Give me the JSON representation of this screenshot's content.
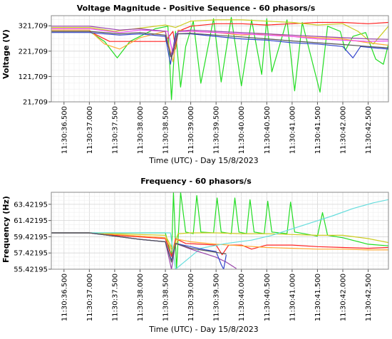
{
  "chart_data": [
    {
      "type": "line",
      "title": "Voltage Magnitude - Positive Sequence - 60 phasors/s",
      "xlabel": "Time (UTC) - Day 15/8/2023",
      "ylabel": "Voltage (V)",
      "ylim": [
        21709,
        361709
      ],
      "yticks": [
        "21,709",
        "121,709",
        "221,709",
        "321,709"
      ],
      "ytick_values": [
        21709,
        121709,
        221709,
        321709
      ],
      "xticks": [
        "11:30:36.500",
        "11:30:37.000",
        "11:30:37.500",
        "11:30:38.000",
        "11:30:38.500",
        "11:30:39.000",
        "11:30:39.500",
        "11:30:40.000",
        "11:30:40.500",
        "11:30:41.000",
        "11:30:41.500",
        "11:30:42.000",
        "11:30:42.500"
      ],
      "xlim": [
        36.25,
        42.9
      ],
      "grid": true,
      "colors": [
        "#22dd22",
        "#ff2222",
        "#ffaa33",
        "#cccc22",
        "#3344cc",
        "#ee44ee",
        "#9944aa",
        "#555555"
      ],
      "series": [
        {
          "color": "#22dd22",
          "x": [
            36.25,
            37.0,
            37.3,
            37.55,
            37.8,
            38.3,
            38.55,
            38.62,
            38.7,
            38.8,
            38.9,
            39.05,
            39.2,
            39.45,
            39.6,
            39.8,
            40.0,
            40.2,
            40.4,
            40.5,
            40.6,
            40.9,
            41.05,
            41.2,
            41.55,
            41.7,
            41.95,
            42.05,
            42.2,
            42.45,
            42.65,
            42.8,
            42.9
          ],
          "y": [
            300000,
            300000,
            260000,
            195000,
            260000,
            310000,
            320000,
            30000,
            300000,
            80000,
            240000,
            340000,
            95000,
            350000,
            100000,
            355000,
            85000,
            345000,
            130000,
            350000,
            140000,
            345000,
            65000,
            335000,
            60000,
            320000,
            300000,
            225000,
            280000,
            295000,
            190000,
            170000,
            250000
          ]
        },
        {
          "color": "#ff2222",
          "x": [
            36.25,
            37.0,
            37.4,
            37.7,
            38.5,
            38.65,
            38.7,
            38.75,
            39.0,
            39.5,
            40.0,
            40.5,
            41.0,
            41.5,
            42.0,
            42.5,
            42.9
          ],
          "y": [
            300000,
            300000,
            260000,
            260000,
            260000,
            300000,
            230000,
            300000,
            320000,
            330000,
            330000,
            325000,
            330000,
            335000,
            335000,
            330000,
            335000
          ]
        },
        {
          "color": "#ffaa33",
          "x": [
            36.25,
            37.0,
            37.3,
            37.6,
            38.0,
            38.5,
            38.65,
            38.75,
            39.0,
            39.5,
            40.0,
            40.5,
            41.0,
            41.5,
            42.0,
            42.5,
            42.9
          ],
          "y": [
            305000,
            305000,
            250000,
            230000,
            275000,
            300000,
            180000,
            305000,
            300000,
            295000,
            285000,
            290000,
            280000,
            275000,
            270000,
            255000,
            245000
          ]
        },
        {
          "color": "#cccc22",
          "x": [
            36.25,
            37.0,
            37.5,
            37.9,
            38.5,
            38.7,
            39.0,
            39.5,
            40.0,
            40.5,
            41.0,
            41.5,
            42.0,
            42.3,
            42.6,
            42.9
          ],
          "y": [
            315000,
            315000,
            300000,
            310000,
            325000,
            315000,
            340000,
            345000,
            345000,
            340000,
            335000,
            325000,
            330000,
            300000,
            250000,
            320000
          ]
        },
        {
          "color": "#3344cc",
          "x": [
            36.25,
            37.0,
            37.6,
            38.0,
            38.5,
            38.6,
            38.7,
            39.0,
            39.5,
            40.0,
            40.5,
            41.0,
            41.5,
            42.0,
            42.2,
            42.35,
            42.6,
            42.9
          ],
          "y": [
            295000,
            295000,
            285000,
            290000,
            280000,
            170000,
            290000,
            290000,
            280000,
            270000,
            265000,
            255000,
            250000,
            240000,
            195000,
            240000,
            235000,
            230000
          ]
        },
        {
          "color": "#ee44ee",
          "x": [
            36.25,
            37.0,
            37.6,
            38.0,
            38.55,
            38.65,
            38.75,
            39.0,
            39.5,
            40.0,
            40.5,
            41.0,
            41.5,
            42.0,
            42.5,
            42.9
          ],
          "y": [
            310000,
            310000,
            295000,
            305000,
            300000,
            210000,
            300000,
            300000,
            295000,
            290000,
            285000,
            280000,
            270000,
            265000,
            260000,
            262000
          ]
        },
        {
          "color": "#9944aa",
          "x": [
            36.25,
            37.0,
            37.6,
            38.0,
            38.5,
            38.6,
            38.75,
            39.0,
            39.5,
            40.0,
            40.5,
            41.0,
            41.5,
            42.0,
            42.5,
            42.9
          ],
          "y": [
            320000,
            320000,
            305000,
            310000,
            300000,
            200000,
            300000,
            305000,
            300000,
            295000,
            290000,
            285000,
            280000,
            275000,
            270000,
            268000
          ]
        },
        {
          "color": "#555555",
          "x": [
            36.25,
            37.0,
            37.6,
            38.0,
            38.5,
            38.62,
            38.75,
            39.0,
            39.5,
            40.0,
            40.5,
            41.0,
            41.5,
            42.0,
            42.5,
            42.9
          ],
          "y": [
            300000,
            300000,
            290000,
            295000,
            285000,
            195000,
            290000,
            292000,
            285000,
            278000,
            270000,
            262000,
            255000,
            248000,
            240000,
            235000
          ]
        }
      ]
    },
    {
      "type": "line",
      "title": "Frequency - 60 phasors/s",
      "xlabel": "Time (UTC) - Day 15/8/2023",
      "ylabel": "Frequency (Hz)",
      "ylim": [
        55.42195,
        64.9
      ],
      "yticks": [
        "55.42195",
        "57.42195",
        "59.42195",
        "61.42195",
        "63.42195"
      ],
      "ytick_values": [
        55.42195,
        57.42195,
        59.42195,
        61.42195,
        63.42195
      ],
      "xticks": [
        "11:30:36.500",
        "11:30:37.000",
        "11:30:37.500",
        "11:30:38.000",
        "11:30:38.500",
        "11:30:39.000",
        "11:30:39.500",
        "11:30:40.000",
        "11:30:40.500",
        "11:30:41.000",
        "11:30:41.500",
        "11:30:42.000",
        "11:30:42.500"
      ],
      "xlim": [
        36.25,
        42.9
      ],
      "grid": true,
      "colors": [
        "#22dd22",
        "#ff2222",
        "#ffaa33",
        "#cccc22",
        "#66dddd",
        "#9944aa",
        "#3344cc",
        "#555555"
      ],
      "series": [
        {
          "color": "#22dd22",
          "x": [
            36.25,
            38.5,
            38.62,
            38.66,
            38.72,
            38.8,
            38.9,
            39.05,
            39.12,
            39.2,
            39.45,
            39.52,
            39.6,
            39.8,
            39.87,
            39.95,
            40.1,
            40.17,
            40.25,
            40.45,
            40.52,
            40.6,
            40.9,
            40.97,
            41.05,
            41.5,
            41.6,
            41.7,
            42.0,
            42.5,
            42.9
          ],
          "y": [
            59.9,
            59.9,
            57.0,
            64.9,
            55.42195,
            64.9,
            60.0,
            59.8,
            64.5,
            60.0,
            59.9,
            64.2,
            60.0,
            59.8,
            64.2,
            60.0,
            59.8,
            64.0,
            60.0,
            59.8,
            63.8,
            60.0,
            59.8,
            63.7,
            60.0,
            59.5,
            62.4,
            59.6,
            59.3,
            58.5,
            58.3
          ]
        },
        {
          "color": "#ff2222",
          "x": [
            36.25,
            37.0,
            37.5,
            38.0,
            38.5,
            38.62,
            38.7,
            38.9,
            39.2,
            39.5,
            39.62,
            39.75,
            40.0,
            40.2,
            40.5,
            41.0,
            41.5,
            42.0,
            42.5,
            42.9
          ],
          "y": [
            59.9,
            59.9,
            59.6,
            59.4,
            59.2,
            57.0,
            59.2,
            58.6,
            58.5,
            58.4,
            57.2,
            58.4,
            58.4,
            57.9,
            58.4,
            58.4,
            58.2,
            58.1,
            58.0,
            58.1
          ]
        },
        {
          "color": "#ffaa33",
          "x": [
            36.25,
            37.0,
            37.5,
            38.0,
            38.5,
            38.65,
            38.75,
            39.0,
            39.5,
            40.0,
            40.5,
            41.0,
            41.5,
            42.0,
            42.5,
            42.9
          ],
          "y": [
            59.9,
            59.9,
            59.7,
            59.5,
            59.3,
            57.5,
            59.1,
            58.8,
            58.5,
            58.3,
            58.1,
            58.0,
            57.9,
            57.9,
            57.8,
            57.8
          ]
        },
        {
          "color": "#cccc22",
          "x": [
            36.25,
            37.0,
            37.5,
            38.0,
            38.5,
            38.65,
            38.75,
            39.0,
            39.5,
            40.0,
            40.5,
            41.0,
            41.5,
            42.0,
            42.5,
            42.9
          ],
          "y": [
            59.9,
            59.9,
            59.8,
            59.7,
            59.6,
            57.8,
            59.8,
            59.9,
            59.9,
            59.8,
            59.8,
            59.7,
            59.6,
            59.6,
            59.2,
            58.7
          ]
        },
        {
          "color": "#66dddd",
          "x": [
            36.25,
            38.6,
            38.7,
            39.2,
            39.7,
            40.2,
            40.6,
            41.0,
            41.4,
            41.8,
            42.2,
            42.6,
            42.9
          ],
          "y": [
            59.9,
            59.9,
            55.42195,
            58.0,
            58.6,
            59.0,
            59.6,
            60.4,
            61.2,
            62.0,
            62.9,
            63.6,
            64.0
          ]
        },
        {
          "color": "#9944aa",
          "x": [
            36.25,
            37.0,
            37.5,
            38.0,
            38.5,
            38.62,
            38.7,
            39.0,
            39.3,
            39.5,
            39.7,
            39.9
          ],
          "y": [
            59.9,
            59.9,
            59.5,
            59.1,
            58.8,
            55.42195,
            58.6,
            57.9,
            57.3,
            56.9,
            56.3,
            55.5
          ]
        },
        {
          "color": "#3344cc",
          "x": [
            36.25,
            37.0,
            37.5,
            38.0,
            38.5,
            38.62,
            38.7,
            39.0,
            39.3,
            39.5,
            39.6,
            39.65,
            39.7
          ],
          "y": [
            59.9,
            59.9,
            59.5,
            59.1,
            58.8,
            56.5,
            58.6,
            58.2,
            57.8,
            57.6,
            56.0,
            55.42195,
            57.2
          ]
        },
        {
          "color": "#555555",
          "x": [
            36.25,
            37.0,
            37.5,
            38.0,
            38.5,
            38.62,
            38.7,
            39.0,
            39.5,
            39.7
          ],
          "y": [
            59.9,
            59.9,
            59.5,
            59.1,
            58.8,
            56.3,
            58.6,
            58.0,
            57.5,
            57.3
          ]
        }
      ]
    }
  ]
}
